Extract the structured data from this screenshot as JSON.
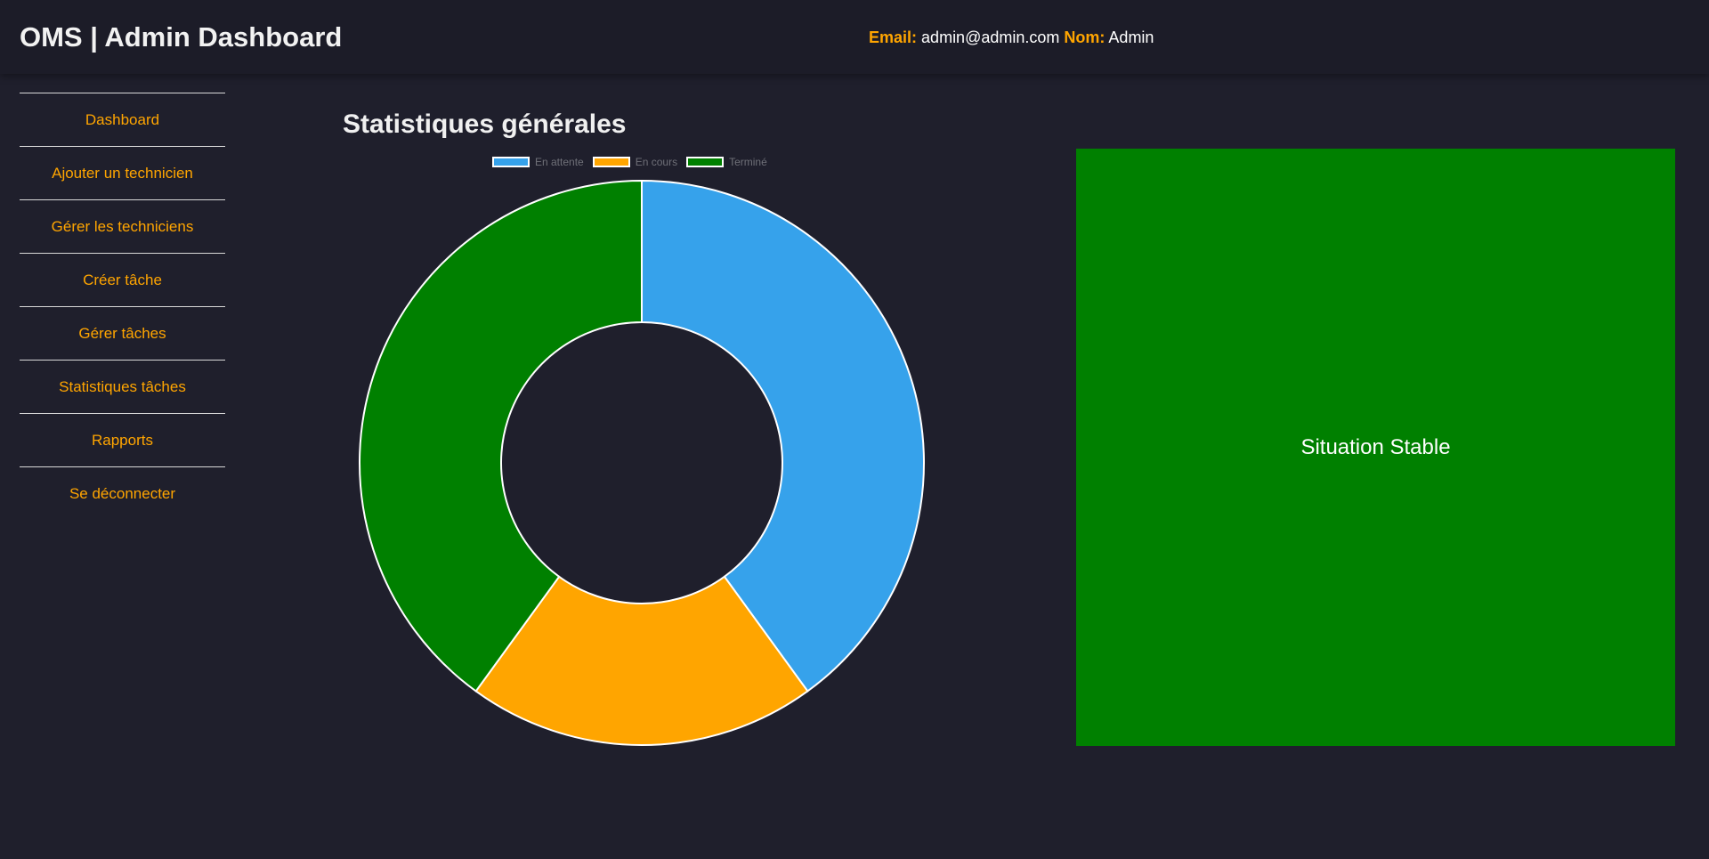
{
  "header": {
    "title": "OMS | Admin Dashboard",
    "email_label": "Email:",
    "email_value": "admin@admin.com",
    "name_label": "Nom:",
    "name_value": "Admin"
  },
  "sidebar": {
    "items": [
      {
        "label": "Dashboard"
      },
      {
        "label": "Ajouter un technicien"
      },
      {
        "label": "Gérer les techniciens"
      },
      {
        "label": "Créer tâche"
      },
      {
        "label": "Gérer tâches"
      },
      {
        "label": "Statistiques tâches"
      },
      {
        "label": "Rapports"
      },
      {
        "label": "Se déconnecter"
      }
    ]
  },
  "main": {
    "section_title": "Statistiques générales",
    "status_text": "Situation Stable",
    "status_color": "#008000"
  },
  "colors": {
    "accent": "#ffa500",
    "background": "#1f1f2c"
  },
  "chart_data": {
    "type": "pie",
    "variant": "doughnut",
    "categories": [
      "En attente",
      "En cours",
      "Terminé"
    ],
    "values": [
      2,
      1,
      2
    ],
    "colors": [
      "#36a2eb",
      "#ffa500",
      "#008000"
    ],
    "legend": "top"
  }
}
